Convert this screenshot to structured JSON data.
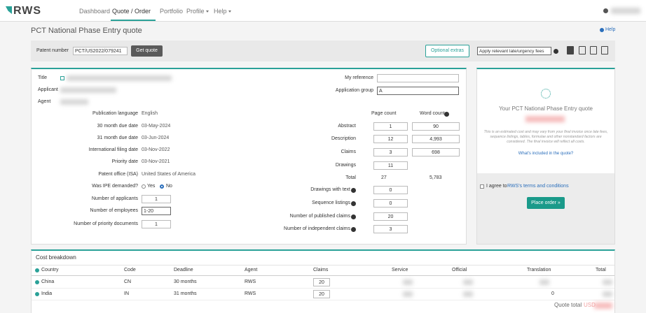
{
  "nav": {
    "logo": "RWS",
    "items": [
      "Dashboard",
      "Quote / Order",
      "Portfolio",
      "Profile",
      "Help"
    ]
  },
  "page": {
    "title": "PCT National Phase Entry quote",
    "help": "Help"
  },
  "patent_bar": {
    "label": "Patent number",
    "input": "PCT/US2022/079241",
    "button": "Get quote",
    "optional_extras": "Optional extras",
    "fees_select": "Apply relevant late/urgency fees"
  },
  "details": {
    "title": "Title",
    "applicant": "Applicant",
    "agent": "Agent",
    "rows": [
      [
        "Publication language",
        "English"
      ],
      [
        "30 month due date",
        "03-May-2024"
      ],
      [
        "31 month due date",
        "03-Jun-2024"
      ],
      [
        "International filing date",
        "03-Nov-2022"
      ],
      [
        "Priority date",
        "03-Nov-2021"
      ],
      [
        "Patent office (ISA)",
        "United States of America"
      ]
    ],
    "ipe": {
      "label": "Was IPE demanded?",
      "yes": "Yes",
      "no": "No"
    },
    "applicants": [
      "Number of applicants",
      "1"
    ],
    "employees": [
      "Number of employees",
      "1-20"
    ],
    "priority_docs": [
      "Number of priority documents",
      "1"
    ]
  },
  "counts": {
    "my_reference": "My reference",
    "application_group": [
      "Application group",
      "A"
    ],
    "page_count": "Page count",
    "word_count": "Word count",
    "rows": [
      [
        "Abstract",
        "1",
        "90"
      ],
      [
        "Description",
        "12",
        "4,993"
      ],
      [
        "Claims",
        "3",
        "698"
      ],
      [
        "Drawings",
        "11"
      ],
      [
        "Total",
        "27",
        "5,783"
      ]
    ],
    "extra": [
      [
        "Drawings with text",
        "0"
      ],
      [
        "Sequence listings",
        "0"
      ],
      [
        "Number of published claims",
        "20"
      ],
      [
        "Number of independent claims",
        "3"
      ]
    ]
  },
  "summary": {
    "heading": "Your PCT National Phase Entry quote",
    "disclaimer": "This is an estimated cost and may vary from your final invoice once late fees, sequence listings, tables, formulae and other nonstandard factors are considered. The final invoice will reflect all costs.",
    "link": "What's included in the quote?",
    "agree": "I agree to",
    "terms": "RWS's terms and conditions",
    "button": "Place order »"
  },
  "cost_breakdown": {
    "title": "Cost breakdown",
    "columns": [
      "Country",
      "Code",
      "Deadline",
      "Agent",
      "Claims",
      "Service",
      "Official",
      "Translation",
      "Total"
    ],
    "rows": [
      [
        "China",
        "CN",
        "30 months",
        "RWS",
        "20"
      ],
      [
        "India",
        "IN",
        "31 months",
        "RWS",
        "20"
      ]
    ],
    "india_translation": "0",
    "quote_total": "Quote total",
    "currency": "USD"
  }
}
